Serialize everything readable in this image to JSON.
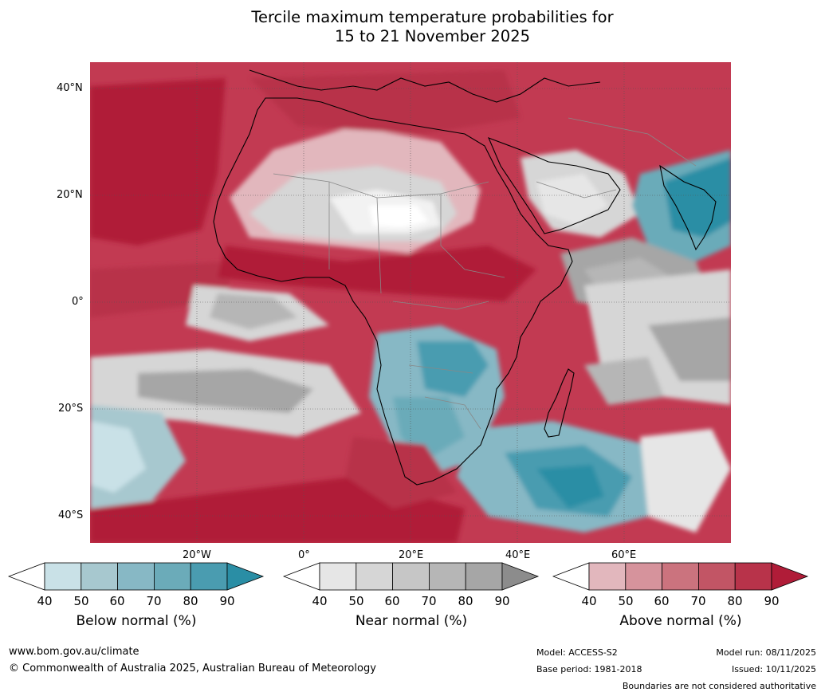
{
  "title": {
    "line1": "Tercile maximum temperature probabilities for",
    "line2": "15 to 21 November 2025"
  },
  "map": {
    "region": "Africa and surrounding oceans",
    "lat_labels": [
      "40°N",
      "20°N",
      "0°",
      "20°S",
      "40°S"
    ],
    "lon_labels": [
      "20°W",
      "0°",
      "20°E",
      "40°E",
      "60°E"
    ]
  },
  "colorbars": [
    {
      "id": "below",
      "label": "Below normal (%)",
      "ticks": [
        "40",
        "50",
        "60",
        "70",
        "80",
        "90"
      ],
      "colors": [
        "#ffffff",
        "#c9e1e7",
        "#a7c8cf",
        "#87b8c5",
        "#6babb9",
        "#4a9cb0",
        "#2a8ea5"
      ]
    },
    {
      "id": "near",
      "label": "Near normal (%)",
      "ticks": [
        "40",
        "50",
        "60",
        "70",
        "80",
        "90"
      ],
      "colors": [
        "#ffffff",
        "#e6e6e6",
        "#d6d6d6",
        "#c6c6c6",
        "#b6b6b6",
        "#a6a6a6",
        "#8c8c8c"
      ]
    },
    {
      "id": "above",
      "label": "Above normal (%)",
      "ticks": [
        "40",
        "50",
        "60",
        "70",
        "80",
        "90"
      ],
      "colors": [
        "#ffffff",
        "#e2b7bd",
        "#d6939c",
        "#cb737e",
        "#c25565",
        "#b8334a",
        "#b01c38"
      ]
    }
  ],
  "footer": {
    "website": "www.bom.gov.au/climate",
    "copyright": "© Commonwealth of Australia 2025, Australian Bureau of Meteorology",
    "model": "Model: ACCESS-S2",
    "base_period": "Base period: 1981-2018",
    "model_run": "Model run: 08/11/2025",
    "issued": "Issued: 10/11/2025",
    "disclaimer": "Boundaries are not considered authoritative"
  }
}
